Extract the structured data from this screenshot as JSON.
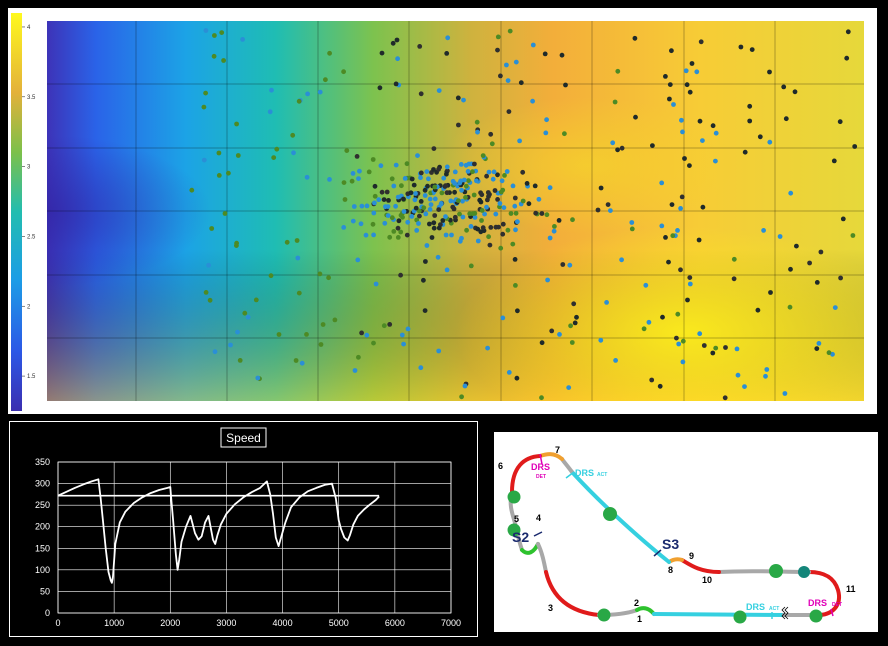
{
  "heatmap": {
    "colorbar_ticks": [
      "4",
      "3.5",
      "3",
      "2.5",
      "2",
      "1.5"
    ],
    "colorbar_values": [
      4,
      3.5,
      3,
      2.5,
      2,
      1.5
    ],
    "colorbar_range": [
      1.25,
      4.1
    ],
    "scatter_colors": [
      "#1f2a2a",
      "#2a8fd6",
      "#4d8a24",
      "#2f2f2f",
      "#2a8fd6"
    ]
  },
  "chart_data": {
    "type": "line",
    "title": "Speed",
    "xlabel": "",
    "ylabel": "",
    "xlim": [
      0,
      7000
    ],
    "ylim": [
      0,
      350
    ],
    "x_ticks": [
      "0",
      "1000",
      "2000",
      "3000",
      "4000",
      "5000",
      "6000",
      "7000"
    ],
    "y_ticks": [
      "350",
      "300",
      "250",
      "200",
      "150",
      "100",
      "50",
      "0"
    ],
    "grid": true,
    "series": [
      {
        "x": [
          0,
          150,
          300,
          450,
          600,
          720,
          760,
          800,
          850,
          900,
          940,
          960,
          980,
          1020,
          1100,
          1200,
          1350,
          1500,
          1650,
          1800,
          1950,
          2000,
          2020,
          2050,
          2100,
          2130,
          2160,
          2200,
          2280,
          2360,
          2440,
          2500,
          2560,
          2620,
          2680,
          2720,
          2760,
          2800,
          2840,
          2900,
          3000,
          3150,
          3300,
          3450,
          3600,
          3720,
          3780,
          3830,
          3880,
          3930,
          3980,
          4050,
          4150,
          4300,
          4450,
          4600,
          4750,
          4880,
          4950,
          5000,
          5040,
          5100,
          5160,
          5200,
          5260,
          5340,
          5450,
          5560,
          5660,
          5720
        ],
        "values": [
          272,
          281,
          290,
          298,
          305,
          310,
          265,
          215,
          150,
          95,
          75,
          70,
          85,
          160,
          210,
          235,
          255,
          268,
          278,
          285,
          290,
          292,
          260,
          215,
          135,
          100,
          125,
          165,
          200,
          225,
          185,
          170,
          178,
          210,
          225,
          198,
          170,
          160,
          180,
          205,
          230,
          252,
          268,
          280,
          290,
          305,
          275,
          230,
          175,
          155,
          178,
          210,
          245,
          268,
          282,
          290,
          297,
          300,
          265,
          215,
          195,
          175,
          168,
          180,
          205,
          225,
          240,
          252,
          262,
          270
        ]
      }
    ],
    "reference_line_y": 272
  },
  "track": {
    "labels": {
      "t1": "1",
      "t2": "2",
      "t3": "3",
      "t4": "4",
      "t5": "5",
      "t6": "6",
      "t7": "7",
      "t8": "8",
      "t9": "9",
      "t10": "10",
      "t11": "11",
      "s2": "S2",
      "s3": "S3",
      "drs_det_top": "DRS",
      "drs_det_top_sub": "DET",
      "drs_act_top": "DRS",
      "drs_act_top_sub": "ACT",
      "drs_act_bottom": "DRS",
      "drs_act_bottom_sub": "ACT",
      "drs_det_bottom": "DRS",
      "drs_det_bottom_sub": "DET"
    },
    "colors": {
      "slow": "#e01b1b",
      "fast": "#35d0e0",
      "medium": "#a8a8a8",
      "drs": "#e000b8",
      "sector": "#1a2a6e",
      "marshal": "#29a846",
      "teal": "#14867a",
      "orange": "#f0a030",
      "green": "#2ec22e"
    }
  }
}
